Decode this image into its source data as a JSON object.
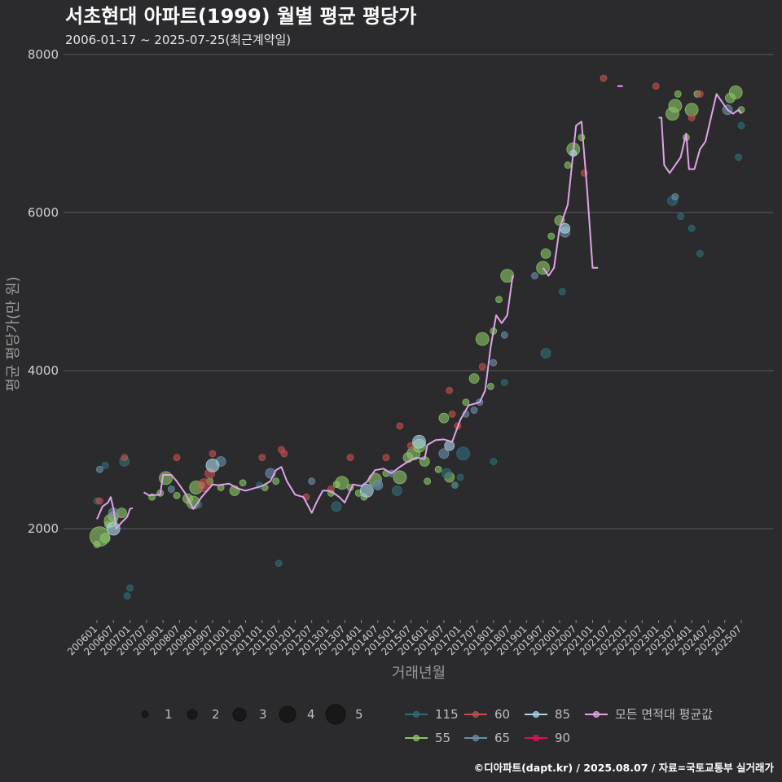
{
  "chart_data": {
    "type": "scatter",
    "title": "서초현대 아파트(1999) 월별 평균 평당가",
    "subtitle": "2006-01-17 ~ 2025-07-25(최근계약일)",
    "xlabel": "거래년월",
    "ylabel": "평균 평당가(만 원)",
    "ylim": [
      800,
      8000
    ],
    "y_ticks": [
      2000,
      4000,
      6000,
      8000
    ],
    "grid": "horizontal",
    "x_ticks": [
      "200601",
      "200607",
      "200701",
      "200707",
      "200801",
      "200807",
      "200901",
      "200907",
      "201001",
      "201007",
      "201101",
      "201107",
      "201201",
      "201207",
      "201301",
      "201307",
      "201401",
      "201407",
      "201501",
      "201507",
      "201601",
      "201607",
      "201701",
      "201707",
      "201801",
      "201807",
      "201901",
      "201907",
      "202001",
      "202007",
      "202101",
      "202107",
      "202201",
      "202207",
      "202301",
      "202307",
      "202401",
      "202407",
      "202501",
      "202507"
    ],
    "size_legend": {
      "values": [
        1,
        2,
        3,
        4,
        5
      ]
    },
    "color_legend": [
      {
        "label": "115",
        "color": "#2e6e78"
      },
      {
        "label": "60",
        "color": "#c0504d"
      },
      {
        "label": "85",
        "color": "#a9d6e5"
      },
      {
        "label": "모든 면적대 평균값",
        "color": "#e0a3e8"
      },
      {
        "label": "55",
        "color": "#8ac466"
      },
      {
        "label": "65",
        "color": "#6c8ea8"
      },
      {
        "label": "90",
        "color": "#e0105a"
      }
    ],
    "series": [
      {
        "name": "55",
        "color": "#8ac466",
        "points": [
          [
            "200601",
            1800,
            1
          ],
          [
            "200602",
            1900,
            5
          ],
          [
            "200604",
            1880,
            2
          ],
          [
            "200605",
            2050,
            1
          ],
          [
            "200606",
            2100,
            3
          ],
          [
            "200607",
            2150,
            2
          ],
          [
            "200610",
            2200,
            2
          ],
          [
            "200709",
            2400,
            1
          ],
          [
            "200712",
            2450,
            1
          ],
          [
            "200802",
            2640,
            3
          ],
          [
            "200806",
            2420,
            1
          ],
          [
            "200810",
            2380,
            2
          ],
          [
            "200812",
            2330,
            3
          ],
          [
            "200901",
            2520,
            3
          ],
          [
            "200903",
            2550,
            1
          ],
          [
            "200906",
            2600,
            1
          ],
          [
            "200910",
            2520,
            1
          ],
          [
            "201003",
            2480,
            2
          ],
          [
            "201006",
            2580,
            1
          ],
          [
            "201102",
            2520,
            1
          ],
          [
            "201106",
            2600,
            1
          ],
          [
            "201302",
            2450,
            1
          ],
          [
            "201304",
            2560,
            1
          ],
          [
            "201306",
            2580,
            3
          ],
          [
            "201309",
            2520,
            1
          ],
          [
            "201312",
            2450,
            1
          ],
          [
            "201402",
            2400,
            1
          ],
          [
            "201406",
            2620,
            3
          ],
          [
            "201410",
            2700,
            1
          ],
          [
            "201503",
            2650,
            3
          ],
          [
            "201506",
            2900,
            2
          ],
          [
            "201508",
            2950,
            3
          ],
          [
            "201510",
            3050,
            3
          ],
          [
            "201512",
            2850,
            2
          ],
          [
            "201601",
            2600,
            1
          ],
          [
            "201605",
            2750,
            1
          ],
          [
            "201607",
            3400,
            2
          ],
          [
            "201609",
            2650,
            2
          ],
          [
            "201611",
            2550,
            1
          ],
          [
            "201703",
            3600,
            1
          ],
          [
            "201706",
            3900,
            2
          ],
          [
            "201709",
            4400,
            3
          ],
          [
            "201712",
            3800,
            1
          ],
          [
            "201801",
            4500,
            1
          ],
          [
            "201803",
            4900,
            1
          ],
          [
            "201806",
            5200,
            3
          ],
          [
            "201907",
            5300,
            3
          ],
          [
            "201908",
            5480,
            2
          ],
          [
            "201910",
            5700,
            1
          ],
          [
            "202001",
            5900,
            2
          ],
          [
            "202004",
            6600,
            1
          ],
          [
            "202006",
            6800,
            3
          ],
          [
            "202009",
            6950,
            1
          ],
          [
            "202306",
            7250,
            3
          ],
          [
            "202307",
            7350,
            3
          ],
          [
            "202308",
            7500,
            1
          ],
          [
            "202311",
            6950,
            1
          ],
          [
            "202401",
            7300,
            3
          ],
          [
            "202403",
            7500,
            1
          ],
          [
            "202503",
            7450,
            2
          ],
          [
            "202505",
            7520,
            3
          ],
          [
            "202507",
            7300,
            1
          ]
        ]
      },
      {
        "name": "115",
        "color": "#2e6e78",
        "points": [
          [
            "200601",
            2350,
            1
          ],
          [
            "200604",
            2800,
            1
          ],
          [
            "200611",
            2850,
            2
          ],
          [
            "200612",
            1150,
            1
          ],
          [
            "200701",
            1250,
            1
          ],
          [
            "200902",
            2300,
            1
          ],
          [
            "201012",
            2550,
            1
          ],
          [
            "201107",
            1560,
            1
          ],
          [
            "201304",
            2280,
            2
          ],
          [
            "201407",
            2550,
            1
          ],
          [
            "201502",
            2480,
            2
          ],
          [
            "201608",
            2700,
            2
          ],
          [
            "201611",
            2550,
            1
          ],
          [
            "201701",
            2650,
            1
          ],
          [
            "201702",
            2950,
            3
          ],
          [
            "201801",
            2850,
            1
          ],
          [
            "201805",
            3850,
            1
          ],
          [
            "201908",
            4220,
            2
          ],
          [
            "202002",
            5000,
            1
          ],
          [
            "202306",
            6150,
            2
          ],
          [
            "202309",
            5950,
            1
          ],
          [
            "202401",
            5800,
            1
          ],
          [
            "202404",
            5480,
            1
          ],
          [
            "202506",
            6700,
            1
          ],
          [
            "202507",
            7100,
            1
          ]
        ]
      },
      {
        "name": "60",
        "color": "#c0504d",
        "points": [
          [
            "200602",
            2350,
            1
          ],
          [
            "200611",
            2900,
            1
          ],
          [
            "200806",
            2900,
            1
          ],
          [
            "200904",
            2550,
            3
          ],
          [
            "200906",
            2700,
            2
          ],
          [
            "200907",
            2950,
            1
          ],
          [
            "201101",
            2900,
            1
          ],
          [
            "201108",
            3000,
            1
          ],
          [
            "201109",
            2950,
            1
          ],
          [
            "201205",
            2400,
            1
          ],
          [
            "201302",
            2500,
            1
          ],
          [
            "201309",
            2900,
            1
          ],
          [
            "201410",
            2900,
            1
          ],
          [
            "201503",
            3300,
            1
          ],
          [
            "201507",
            3050,
            1
          ],
          [
            "201609",
            3750,
            1
          ],
          [
            "201610",
            3450,
            1
          ],
          [
            "201612",
            3300,
            1
          ],
          [
            "201709",
            4050,
            1
          ],
          [
            "202010",
            6500,
            1
          ],
          [
            "202105",
            7700,
            1
          ],
          [
            "202212",
            7600,
            1
          ],
          [
            "202401",
            7200,
            1
          ],
          [
            "202404",
            7500,
            1
          ]
        ]
      },
      {
        "name": "65",
        "color": "#6c8ea8",
        "points": [
          [
            "200602",
            2750,
            1
          ],
          [
            "200607",
            2200,
            2
          ],
          [
            "200804",
            2500,
            1
          ],
          [
            "200910",
            2850,
            2
          ],
          [
            "201104",
            2700,
            2
          ],
          [
            "201207",
            2600,
            1
          ],
          [
            "201407",
            2550,
            2
          ],
          [
            "201412",
            2700,
            1
          ],
          [
            "201607",
            2950,
            2
          ],
          [
            "201703",
            3450,
            1
          ],
          [
            "201706",
            3500,
            1
          ],
          [
            "201708",
            3600,
            1
          ],
          [
            "201801",
            4100,
            1
          ],
          [
            "201805",
            4450,
            1
          ],
          [
            "201904",
            5200,
            1
          ],
          [
            "202003",
            5750,
            2
          ],
          [
            "202307",
            6200,
            1
          ],
          [
            "202502",
            7300,
            2
          ]
        ]
      },
      {
        "name": "85",
        "color": "#a9d6e5",
        "points": [
          [
            "200607",
            2000,
            3
          ],
          [
            "200907",
            2800,
            3
          ],
          [
            "201403",
            2480,
            3
          ],
          [
            "201510",
            3100,
            3
          ],
          [
            "201609",
            3050,
            2
          ],
          [
            "202003",
            5800,
            2
          ],
          [
            "202006",
            6750,
            1
          ]
        ]
      }
    ],
    "avg_line": {
      "name": "모든 면적대 평균값",
      "color": "#e0a3e8",
      "segments": [
        [
          [
            "200601",
            2120
          ],
          [
            "200603",
            2280
          ],
          [
            "200605",
            2330
          ],
          [
            "200606",
            2400
          ],
          [
            "200607",
            2250
          ],
          [
            "200608",
            2000
          ],
          [
            "200610",
            2080
          ],
          [
            "200612",
            2150
          ],
          [
            "200701",
            2250
          ],
          [
            "200702",
            2260
          ]
        ],
        [
          [
            "200706",
            2460
          ],
          [
            "200708",
            2420
          ],
          [
            "200712",
            2430
          ],
          [
            "200801",
            2680
          ],
          [
            "200804",
            2680
          ],
          [
            "200806",
            2600
          ],
          [
            "200809",
            2450
          ],
          [
            "200812",
            2250
          ],
          [
            "200901",
            2300
          ],
          [
            "200903",
            2400
          ],
          [
            "200907",
            2560
          ],
          [
            "200909",
            2550
          ],
          [
            "201001",
            2570
          ],
          [
            "201004",
            2510
          ],
          [
            "201007",
            2480
          ],
          [
            "201101",
            2540
          ],
          [
            "201104",
            2600
          ],
          [
            "201106",
            2740
          ],
          [
            "201108",
            2780
          ],
          [
            "201110",
            2600
          ],
          [
            "201201",
            2430
          ],
          [
            "201204",
            2400
          ],
          [
            "201207",
            2200
          ],
          [
            "201209",
            2350
          ],
          [
            "201211",
            2480
          ],
          [
            "201301",
            2480
          ],
          [
            "201303",
            2450
          ],
          [
            "201305",
            2400
          ],
          [
            "201307",
            2330
          ],
          [
            "201310",
            2560
          ],
          [
            "201401",
            2540
          ],
          [
            "201403",
            2590
          ],
          [
            "201406",
            2740
          ],
          [
            "201409",
            2760
          ],
          [
            "201412",
            2700
          ],
          [
            "201503",
            2780
          ],
          [
            "201506",
            2850
          ],
          [
            "201509",
            2900
          ],
          [
            "201512",
            2880
          ],
          [
            "201601",
            3060
          ],
          [
            "201604",
            3120
          ],
          [
            "201607",
            3130
          ],
          [
            "201610",
            3100
          ],
          [
            "201701",
            3380
          ],
          [
            "201704",
            3560
          ],
          [
            "201706",
            3580
          ],
          [
            "201708",
            3600
          ],
          [
            "201710",
            3750
          ],
          [
            "201712",
            4300
          ],
          [
            "201802",
            4700
          ],
          [
            "201804",
            4600
          ],
          [
            "201806",
            4700
          ],
          [
            "201808",
            5200
          ]
        ],
        [
          [
            "201907",
            5300
          ],
          [
            "201909",
            5200
          ],
          [
            "201911",
            5300
          ],
          [
            "202001",
            5800
          ],
          [
            "202004",
            6100
          ],
          [
            "202007",
            7100
          ],
          [
            "202009",
            7150
          ],
          [
            "202011",
            6300
          ],
          [
            "202101",
            5300
          ],
          [
            "202103",
            5300
          ]
        ],
        [
          [
            "202110",
            7600
          ],
          [
            "202112",
            7600
          ]
        ],
        [
          [
            "202301",
            7200
          ],
          [
            "202302",
            7200
          ],
          [
            "202303",
            6600
          ],
          [
            "202305",
            6500
          ],
          [
            "202307",
            6600
          ],
          [
            "202309",
            6700
          ],
          [
            "202311",
            7000
          ],
          [
            "202312",
            6550
          ],
          [
            "202402",
            6550
          ],
          [
            "202404",
            6800
          ],
          [
            "202406",
            6900
          ],
          [
            "202408",
            7200
          ],
          [
            "202410",
            7500
          ],
          [
            "202412",
            7400
          ],
          [
            "202502",
            7300
          ],
          [
            "202504",
            7250
          ],
          [
            "202506",
            7300
          ],
          [
            "202507",
            7250
          ]
        ]
      ]
    },
    "caption": "©디아파트(dapt.kr) / 2025.08.07 / 자료=국토교통부 실거래가"
  }
}
